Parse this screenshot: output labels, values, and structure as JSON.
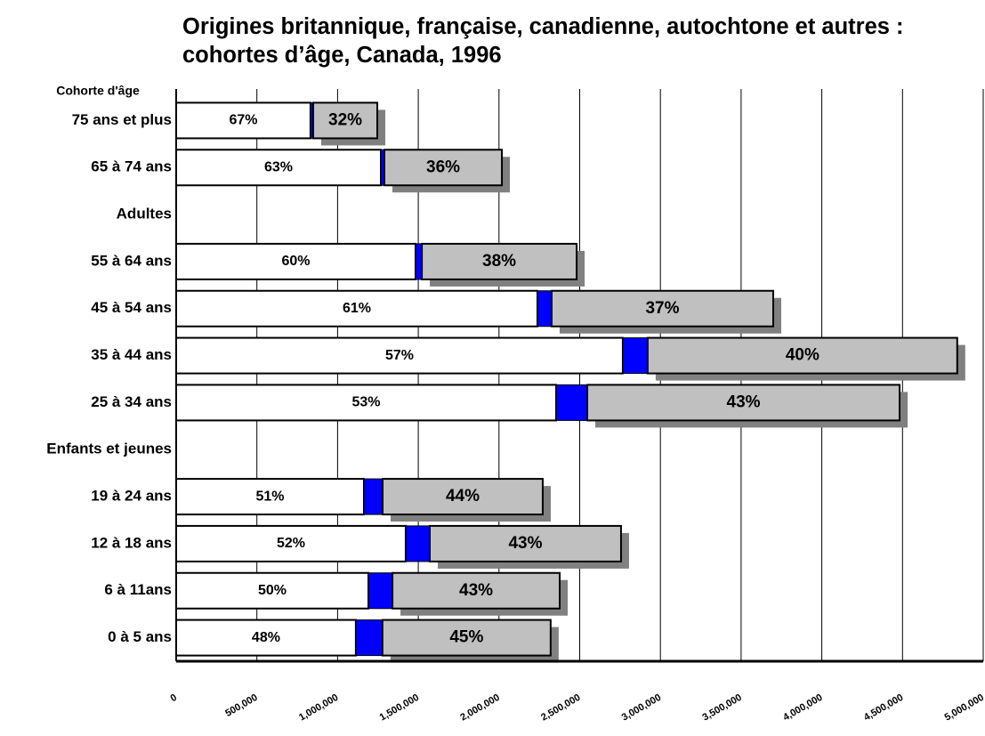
{
  "chart_data": {
    "type": "stacked-bar-horizontal",
    "title": "Origines britannique, française, canadienne, autochtone et autres : cohortes d’âge, Canada, 1996",
    "y_label": "Cohorte d'âge",
    "categories": [
      "75 ans et plus",
      "65 à 74 ans",
      "Adultes",
      "55 à 64 ans",
      "45 à 54 ans",
      "35 à 44 ans",
      "25 à 34 ans",
      "Enfants et jeunes",
      "19 à 24 ans",
      "12 à 18 ans",
      "6 à 11ans",
      "0 à 5 ans"
    ],
    "series": [
      {
        "color": "#ffffff",
        "values": [
          832000,
          1268000,
          null,
          1483000,
          2238000,
          2767000,
          2354000,
          null,
          1163000,
          1422000,
          1191000,
          1113000
        ],
        "labels": [
          "67%",
          "63%",
          null,
          "60%",
          "61%",
          "57%",
          "53%",
          null,
          "51%",
          "52%",
          "50%",
          "48%"
        ]
      },
      {
        "color": "#0000ff",
        "values": [
          17000,
          22000,
          null,
          39000,
          88000,
          154000,
          193000,
          null,
          116000,
          149000,
          149000,
          165000
        ]
      },
      {
        "color": "#c0c0c0",
        "values": [
          397000,
          728000,
          null,
          959000,
          1373000,
          1918000,
          1935000,
          null,
          992000,
          1185000,
          1036000,
          1042000
        ],
        "labels": [
          "32%",
          "36%",
          null,
          "38%",
          "37%",
          "40%",
          "43%",
          null,
          "44%",
          "43%",
          "43%",
          "45%"
        ]
      }
    ],
    "xlim": [
      0,
      5000000
    ],
    "xticks": [
      0,
      {
        "value": 500000,
        "label": "500,000"
      },
      {
        "value": 1000000,
        "label": "1,000,000"
      },
      {
        "value": 1500000,
        "label": "1,500,000"
      },
      {
        "value": 2000000,
        "label": "2,000,000"
      },
      {
        "value": 2500000,
        "label": "2,500,000"
      },
      {
        "value": 3000000,
        "label": "3,000,000"
      },
      {
        "value": 3500000,
        "label": "3,500,000"
      },
      {
        "value": 4000000,
        "label": "4,000,000"
      },
      {
        "value": 4500000,
        "label": "4,500,000"
      },
      {
        "value": 5000000,
        "label": "5,000,000"
      }
    ],
    "grid": true
  }
}
